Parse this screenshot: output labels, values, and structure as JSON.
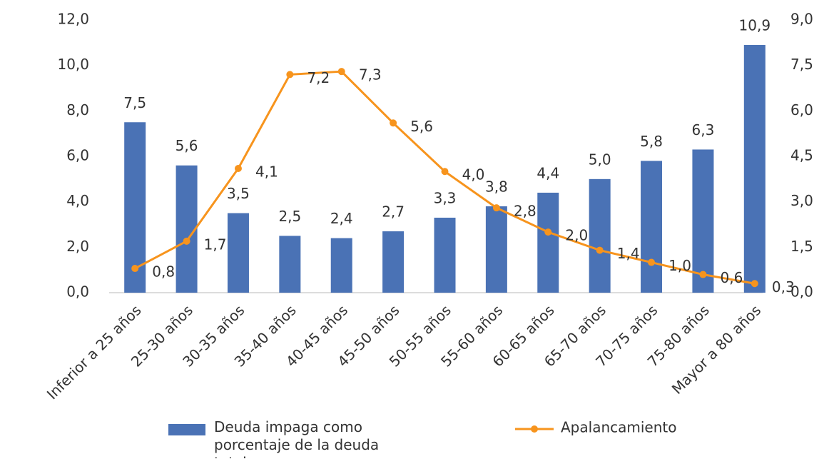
{
  "chart_data": {
    "type": "bar",
    "categories": [
      "Inferior a 25 años",
      "25-30 años",
      "30-35 años",
      "35-40 años",
      "40-45 años",
      "45-50 años",
      "50-55 años",
      "55-60 años",
      "60-65 años",
      "65-70 años",
      "70-75 años",
      "75-80 años",
      "Mayor a 80 años"
    ],
    "series": [
      {
        "name": "Deuda impaga como porcentaje de la deuda total",
        "color": "#4a72b5",
        "type": "bar",
        "values": [
          7.5,
          5.6,
          3.5,
          2.5,
          2.4,
          2.7,
          3.3,
          3.8,
          4.4,
          5.0,
          5.8,
          6.3,
          10.9
        ],
        "value_labels": [
          "7,5",
          "5,6",
          "3,5",
          "2,5",
          "2,4",
          "2,7",
          "3,3",
          "3,8",
          "4,4",
          "5,0",
          "5,8",
          "6,3",
          "10,9"
        ]
      },
      {
        "name": "Apalancamiento",
        "color": "#f7941d",
        "type": "line",
        "axis": "y2",
        "values": [
          0.8,
          1.7,
          4.1,
          7.2,
          7.3,
          5.6,
          4.0,
          2.8,
          2.0,
          1.4,
          1.0,
          0.6,
          0.3
        ],
        "value_labels": [
          "0,8",
          "1,7",
          "4,1",
          "7,2",
          "7,3",
          "5,6",
          "4,0",
          "2,8",
          "2,0",
          "1,4",
          "1,0",
          "0,6",
          "0,3"
        ]
      }
    ],
    "ylim": [
      0,
      12
    ],
    "yticks": [
      {
        "value": 0,
        "label": "0,0"
      },
      {
        "value": 2,
        "label": "2,0"
      },
      {
        "value": 4,
        "label": "4,0"
      },
      {
        "value": 6,
        "label": "6,0"
      },
      {
        "value": 8,
        "label": "8,0"
      },
      {
        "value": 10,
        "label": "10,0"
      },
      {
        "value": 12,
        "label": "12,0"
      }
    ],
    "y2lim": [
      0,
      9
    ],
    "y2ticks": [
      {
        "value": 0,
        "label": "0,0"
      },
      {
        "value": 1.5,
        "label": "1,5"
      },
      {
        "value": 3,
        "label": "3,0"
      },
      {
        "value": 4.5,
        "label": "4,5"
      },
      {
        "value": 6,
        "label": "6,0"
      },
      {
        "value": 7.5,
        "label": "7,5"
      },
      {
        "value": 9,
        "label": "9,0"
      }
    ],
    "legend": "bottom"
  }
}
